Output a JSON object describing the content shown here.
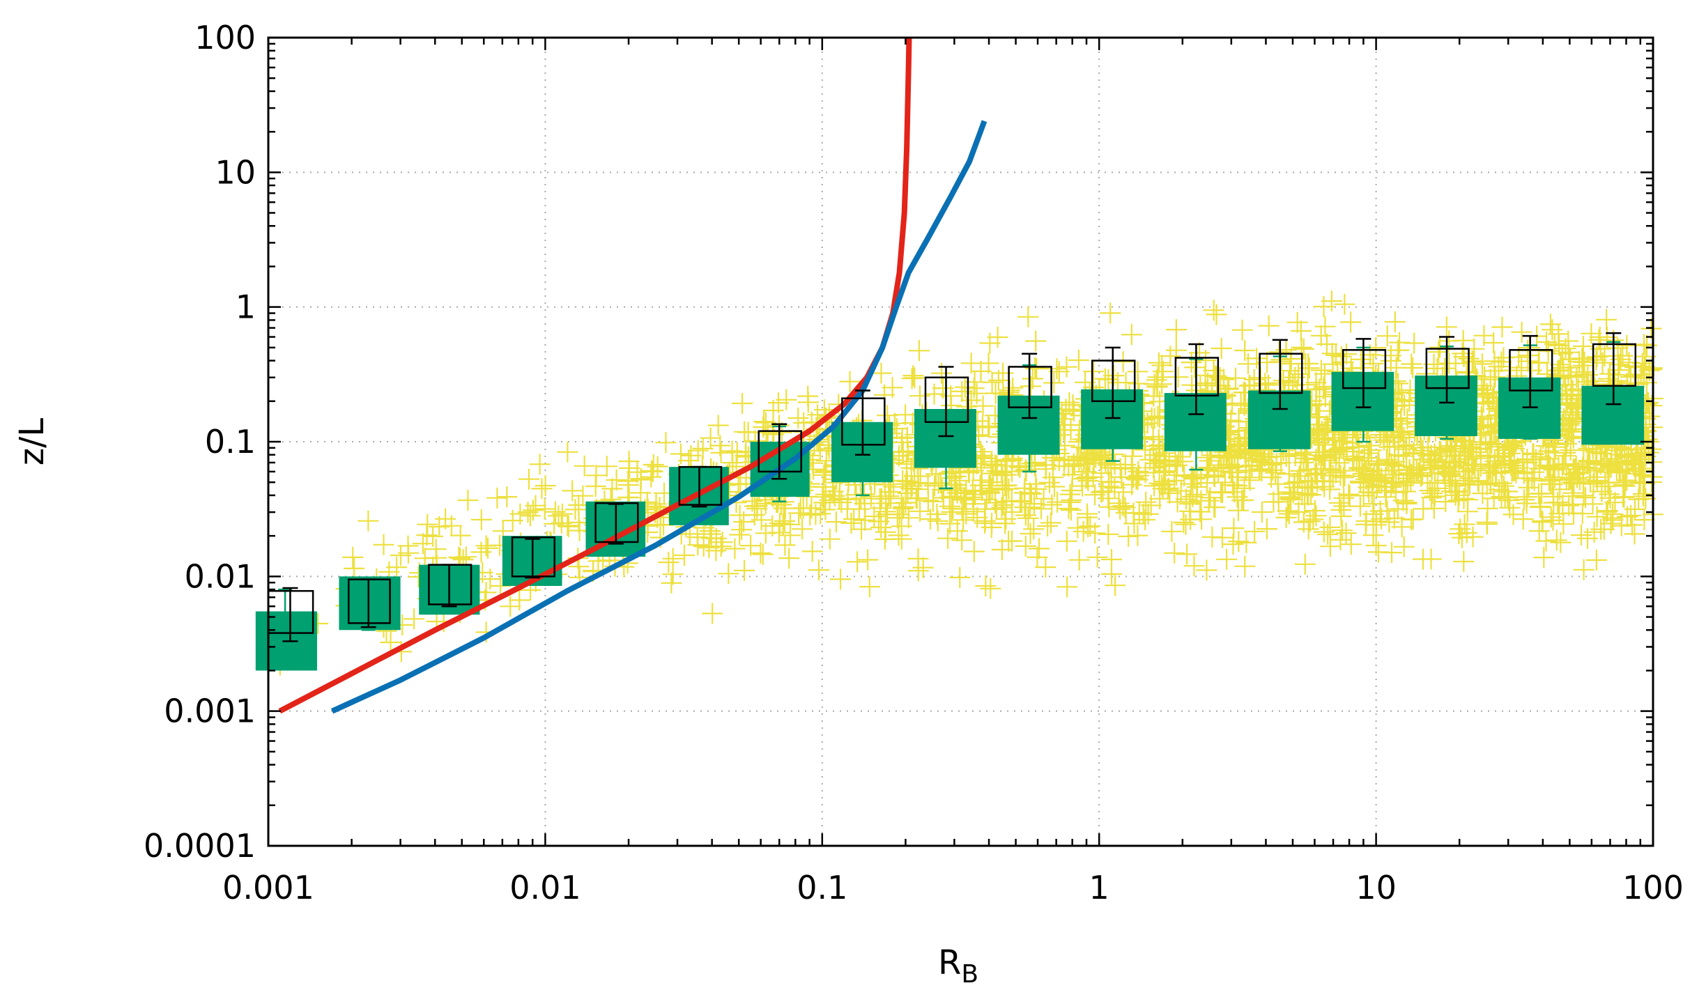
{
  "chart_data": {
    "type": "scatter",
    "title": "",
    "xlabel": "R",
    "xlabel_sub": "B",
    "ylabel": "z/L",
    "x_scale": "log",
    "y_scale": "log",
    "xlim": [
      0.001,
      100
    ],
    "ylim": [
      0.0001,
      100
    ],
    "grid": true,
    "x_ticks": [
      {
        "value": 0.001,
        "label": "0.001"
      },
      {
        "value": 0.01,
        "label": "0.01"
      },
      {
        "value": 0.1,
        "label": "0.1"
      },
      {
        "value": 1,
        "label": "1"
      },
      {
        "value": 10,
        "label": "10"
      },
      {
        "value": 100,
        "label": "100"
      }
    ],
    "y_ticks": [
      {
        "value": 0.0001,
        "label": "0.0001"
      },
      {
        "value": 0.001,
        "label": "0.001"
      },
      {
        "value": 0.01,
        "label": "0.01"
      },
      {
        "value": 0.1,
        "label": "0.1"
      },
      {
        "value": 1,
        "label": "1"
      },
      {
        "value": 10,
        "label": "10"
      },
      {
        "value": 100,
        "label": "100"
      }
    ],
    "colors": {
      "scatter": "#ede03f",
      "box_fill": "#00a070",
      "box_fill_errorbar": "#00a070",
      "box_open": "#000000",
      "curve_red": "#e32419",
      "curve_blue": "#0a70b4"
    },
    "scatter_cloud": {
      "marker": "plus",
      "count": 2600,
      "approx_n": "several thousand",
      "trend": [
        {
          "x": 0.001,
          "y": 0.004
        },
        {
          "x": 0.01,
          "y": 0.02
        },
        {
          "x": 0.1,
          "y": 0.06
        },
        {
          "x": 1,
          "y": 0.09
        },
        {
          "x": 10,
          "y": 0.11
        },
        {
          "x": 100,
          "y": 0.12
        }
      ]
    },
    "series": [
      {
        "name": "binned median (filled)",
        "style": "filled-box-with-errorbar",
        "bins": [
          {
            "x": 0.00115,
            "xl": 0.0009,
            "xh": 0.0015,
            "y": 0.0032,
            "yl": 0.002,
            "yh": 0.0055,
            "el": 0.0033,
            "eh": 0.008
          },
          {
            "x": 0.0023,
            "xl": 0.0018,
            "xh": 0.003,
            "y": 0.0062,
            "yl": 0.004,
            "yh": 0.01,
            "el": 0.004,
            "eh": 0.0095
          },
          {
            "x": 0.0045,
            "xl": 0.0035,
            "xh": 0.0058,
            "y": 0.008,
            "yl": 0.0052,
            "yh": 0.0122,
            "el": 0.0058,
            "eh": 0.012
          },
          {
            "x": 0.009,
            "xl": 0.007,
            "xh": 0.0115,
            "y": 0.013,
            "yl": 0.0085,
            "yh": 0.02,
            "el": 0.0095,
            "eh": 0.0185
          },
          {
            "x": 0.018,
            "xl": 0.014,
            "xh": 0.023,
            "y": 0.023,
            "yl": 0.014,
            "yh": 0.036,
            "el": 0.017,
            "eh": 0.034
          },
          {
            "x": 0.036,
            "xl": 0.028,
            "xh": 0.046,
            "y": 0.04,
            "yl": 0.024,
            "yh": 0.065,
            "el": 0.033,
            "eh": 0.065
          },
          {
            "x": 0.07,
            "xl": 0.055,
            "xh": 0.09,
            "y": 0.065,
            "yl": 0.039,
            "yh": 0.1,
            "el": 0.036,
            "eh": 0.13
          },
          {
            "x": 0.14,
            "xl": 0.108,
            "xh": 0.18,
            "y": 0.088,
            "yl": 0.05,
            "yh": 0.14,
            "el": 0.04,
            "eh": 0.24
          },
          {
            "x": 0.28,
            "xl": 0.215,
            "xh": 0.36,
            "y": 0.105,
            "yl": 0.064,
            "yh": 0.175,
            "el": 0.045,
            "eh": 0.3
          },
          {
            "x": 0.56,
            "xl": 0.43,
            "xh": 0.72,
            "y": 0.13,
            "yl": 0.08,
            "yh": 0.22,
            "el": 0.06,
            "eh": 0.37
          },
          {
            "x": 1.12,
            "xl": 0.86,
            "xh": 1.44,
            "y": 0.145,
            "yl": 0.088,
            "yh": 0.245,
            "el": 0.072,
            "eh": 0.4
          },
          {
            "x": 2.24,
            "xl": 1.72,
            "xh": 2.88,
            "y": 0.14,
            "yl": 0.085,
            "yh": 0.23,
            "el": 0.062,
            "eh": 0.41
          },
          {
            "x": 4.5,
            "xl": 3.45,
            "xh": 5.8,
            "y": 0.15,
            "yl": 0.088,
            "yh": 0.24,
            "el": 0.085,
            "eh": 0.43
          },
          {
            "x": 9.0,
            "xl": 6.9,
            "xh": 11.6,
            "y": 0.2,
            "yl": 0.12,
            "yh": 0.33,
            "el": 0.1,
            "eh": 0.5
          },
          {
            "x": 18.0,
            "xl": 13.8,
            "xh": 23.2,
            "y": 0.18,
            "yl": 0.11,
            "yh": 0.31,
            "el": 0.105,
            "eh": 0.51
          },
          {
            "x": 36.0,
            "xl": 27.6,
            "xh": 46.4,
            "y": 0.18,
            "yl": 0.105,
            "yh": 0.3,
            "el": 0.105,
            "eh": 0.52
          },
          {
            "x": 72.0,
            "xl": 55.2,
            "xh": 92.8,
            "y": 0.16,
            "yl": 0.095,
            "yh": 0.26,
            "el": 0.1,
            "eh": 0.55
          }
        ]
      },
      {
        "name": "binned (open)",
        "style": "open-box-with-errorbar",
        "bins": [
          {
            "x": 0.0012,
            "xl": 0.001,
            "xh": 0.00145,
            "y": 0.0055,
            "yl": 0.0038,
            "yh": 0.0078,
            "el": 0.0033,
            "eh": 0.0082
          },
          {
            "x": 0.0023,
            "xl": 0.00195,
            "xh": 0.00275,
            "y": 0.0066,
            "yl": 0.0045,
            "yh": 0.0095,
            "el": 0.0042,
            "eh": 0.0095
          },
          {
            "x": 0.0045,
            "xl": 0.0038,
            "xh": 0.0054,
            "y": 0.0088,
            "yl": 0.0062,
            "yh": 0.0122,
            "el": 0.006,
            "eh": 0.0122
          },
          {
            "x": 0.009,
            "xl": 0.0076,
            "xh": 0.0108,
            "y": 0.014,
            "yl": 0.01,
            "yh": 0.0195,
            "el": 0.0098,
            "eh": 0.019
          },
          {
            "x": 0.018,
            "xl": 0.0152,
            "xh": 0.0216,
            "y": 0.025,
            "yl": 0.018,
            "yh": 0.035,
            "el": 0.0175,
            "eh": 0.0345
          },
          {
            "x": 0.036,
            "xl": 0.0305,
            "xh": 0.0432,
            "y": 0.046,
            "yl": 0.034,
            "yh": 0.065,
            "el": 0.033,
            "eh": 0.065
          },
          {
            "x": 0.07,
            "xl": 0.059,
            "xh": 0.084,
            "y": 0.085,
            "yl": 0.06,
            "yh": 0.12,
            "el": 0.053,
            "eh": 0.135
          },
          {
            "x": 0.14,
            "xl": 0.118,
            "xh": 0.168,
            "y": 0.135,
            "yl": 0.095,
            "yh": 0.21,
            "el": 0.08,
            "eh": 0.24
          },
          {
            "x": 0.28,
            "xl": 0.236,
            "xh": 0.336,
            "y": 0.2,
            "yl": 0.14,
            "yh": 0.3,
            "el": 0.11,
            "eh": 0.36
          },
          {
            "x": 0.56,
            "xl": 0.472,
            "xh": 0.672,
            "y": 0.25,
            "yl": 0.18,
            "yh": 0.36,
            "el": 0.15,
            "eh": 0.45
          },
          {
            "x": 1.12,
            "xl": 0.944,
            "xh": 1.344,
            "y": 0.28,
            "yl": 0.2,
            "yh": 0.4,
            "el": 0.15,
            "eh": 0.5
          },
          {
            "x": 2.24,
            "xl": 1.888,
            "xh": 2.688,
            "y": 0.3,
            "yl": 0.22,
            "yh": 0.42,
            "el": 0.16,
            "eh": 0.53
          },
          {
            "x": 4.5,
            "xl": 3.8,
            "xh": 5.4,
            "y": 0.32,
            "yl": 0.23,
            "yh": 0.45,
            "el": 0.175,
            "eh": 0.57
          },
          {
            "x": 9.0,
            "xl": 7.6,
            "xh": 10.8,
            "y": 0.34,
            "yl": 0.25,
            "yh": 0.48,
            "el": 0.18,
            "eh": 0.58
          },
          {
            "x": 18.0,
            "xl": 15.2,
            "xh": 21.6,
            "y": 0.35,
            "yl": 0.25,
            "yh": 0.49,
            "el": 0.195,
            "eh": 0.6
          },
          {
            "x": 36.0,
            "xl": 30.4,
            "xh": 43.2,
            "y": 0.34,
            "yl": 0.24,
            "yh": 0.48,
            "el": 0.18,
            "eh": 0.61
          },
          {
            "x": 72.0,
            "xl": 60.8,
            "xh": 86.4,
            "y": 0.37,
            "yl": 0.26,
            "yh": 0.53,
            "el": 0.19,
            "eh": 0.64
          }
        ]
      },
      {
        "name": "red curve",
        "style": "line",
        "points": [
          {
            "x": 0.0011,
            "y": 0.001
          },
          {
            "x": 0.002,
            "y": 0.0019
          },
          {
            "x": 0.004,
            "y": 0.004
          },
          {
            "x": 0.008,
            "y": 0.0082
          },
          {
            "x": 0.015,
            "y": 0.016
          },
          {
            "x": 0.03,
            "y": 0.034
          },
          {
            "x": 0.055,
            "y": 0.065
          },
          {
            "x": 0.09,
            "y": 0.12
          },
          {
            "x": 0.12,
            "y": 0.19
          },
          {
            "x": 0.145,
            "y": 0.3
          },
          {
            "x": 0.165,
            "y": 0.5
          },
          {
            "x": 0.18,
            "y": 0.9
          },
          {
            "x": 0.19,
            "y": 1.8
          },
          {
            "x": 0.198,
            "y": 5.0
          },
          {
            "x": 0.202,
            "y": 15.0
          },
          {
            "x": 0.205,
            "y": 60.0
          },
          {
            "x": 0.206,
            "y": 100.0
          }
        ]
      },
      {
        "name": "blue curve",
        "style": "line",
        "points": [
          {
            "x": 0.0017,
            "y": 0.001
          },
          {
            "x": 0.003,
            "y": 0.0017
          },
          {
            "x": 0.006,
            "y": 0.0035
          },
          {
            "x": 0.012,
            "y": 0.0078
          },
          {
            "x": 0.025,
            "y": 0.017
          },
          {
            "x": 0.05,
            "y": 0.039
          },
          {
            "x": 0.08,
            "y": 0.075
          },
          {
            "x": 0.11,
            "y": 0.13
          },
          {
            "x": 0.14,
            "y": 0.24
          },
          {
            "x": 0.165,
            "y": 0.5
          },
          {
            "x": 0.185,
            "y": 1.0
          },
          {
            "x": 0.205,
            "y": 1.8
          },
          {
            "x": 0.24,
            "y": 3.2
          },
          {
            "x": 0.29,
            "y": 6.5
          },
          {
            "x": 0.34,
            "y": 12.0
          },
          {
            "x": 0.385,
            "y": 24.0
          }
        ]
      }
    ]
  }
}
